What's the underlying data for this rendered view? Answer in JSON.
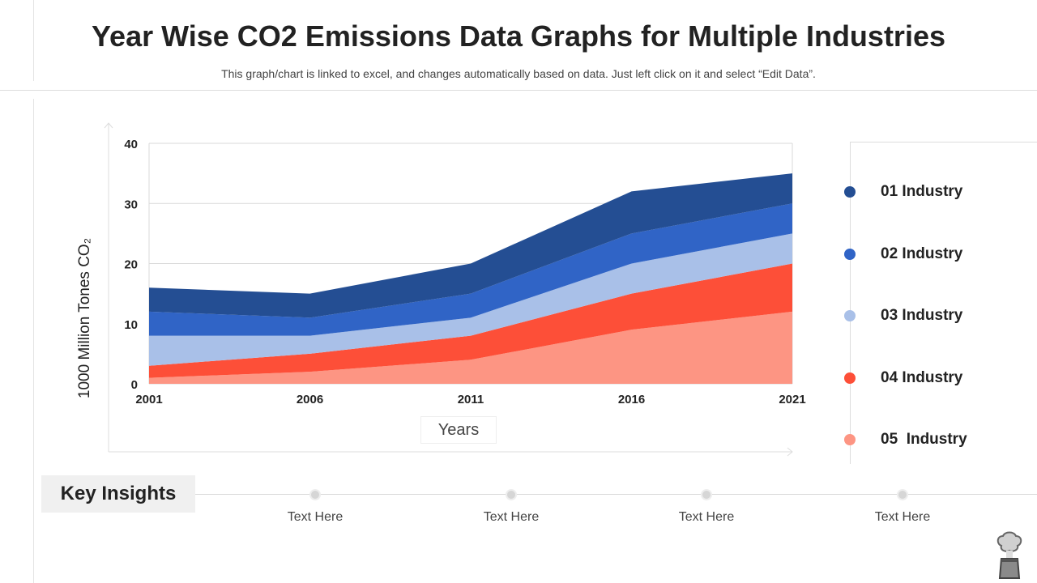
{
  "header": {
    "title": "Year Wise CO2 Emissions Data Graphs for Multiple Industries",
    "subtitle": "This graph/chart is linked to excel, and changes automatically based on data. Just left click on it and select “Edit Data”."
  },
  "chart_data": {
    "type": "area",
    "stacked": true,
    "xlabel": "Years",
    "ylabel": "1000 Million Tones CO₂",
    "categories": [
      "2001",
      "2006",
      "2011",
      "2016",
      "2021"
    ],
    "ylim": [
      0,
      40
    ],
    "yticks": [
      0,
      10,
      20,
      30,
      40
    ],
    "grid": true,
    "legend_position": "right",
    "series": [
      {
        "name": "05  Industry",
        "values": [
          1,
          2,
          4,
          9,
          12
        ],
        "color": "#fd9583"
      },
      {
        "name": "04 Industry",
        "values": [
          2,
          3,
          4,
          6,
          8
        ],
        "color": "#fd4f38"
      },
      {
        "name": "03 Industry",
        "values": [
          5,
          3,
          3,
          5,
          5
        ],
        "color": "#a9c0e8"
      },
      {
        "name": "02 Industry",
        "values": [
          4,
          3,
          4,
          5,
          5
        ],
        "color": "#3064c6"
      },
      {
        "name": "01 Industry",
        "values": [
          4,
          4,
          5,
          7,
          5
        ],
        "color": "#244e93"
      }
    ]
  },
  "insights": {
    "label": "Key Insights",
    "items": [
      "Text Here",
      "Text Here",
      "Text Here",
      "Text Here"
    ]
  },
  "icons": {
    "corner": "factory-smoke-icon"
  }
}
